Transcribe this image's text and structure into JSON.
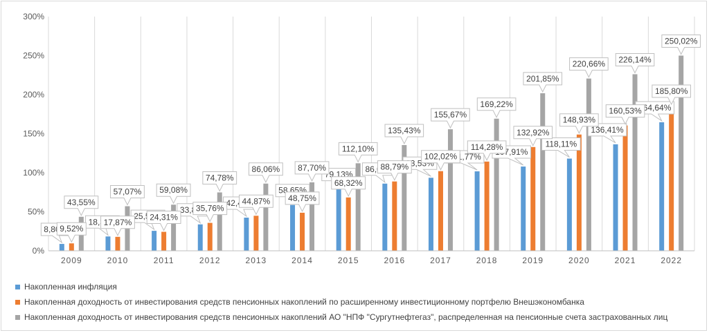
{
  "chart_data": {
    "type": "bar",
    "categories": [
      "2009",
      "2010",
      "2011",
      "2012",
      "2013",
      "2014",
      "2015",
      "2016",
      "2017",
      "2018",
      "2019",
      "2020",
      "2021",
      "2022"
    ],
    "series": [
      {
        "name": "Накопленная инфляция",
        "color": "#5b9bd5",
        "values": [
          8.8,
          18.35,
          25.57,
          33.82,
          42.48,
          58.65,
          79.13,
          86.04,
          93.53,
          101.77,
          107.91,
          118.11,
          136.41,
          164.64
        ],
        "labels": [
          "8,80%",
          "18,35%",
          "25,57%",
          "33,82%",
          "42,48%",
          "58,65%",
          "79,13%",
          "86,04%",
          "93,53%",
          "101,77%",
          "107,91%",
          "118,11%",
          "136,41%",
          "164,64%"
        ]
      },
      {
        "name": "Накопленная доходность от инвестирования средств пенсионных накоплений по расширенному инвестиционному портфелю Внешэкономбанка",
        "color": "#ed7d31",
        "values": [
          9.52,
          17.87,
          24.31,
          35.76,
          44.87,
          48.75,
          68.32,
          88.79,
          102.02,
          114.28,
          132.92,
          148.93,
          160.53,
          185.8
        ],
        "labels": [
          "9,52%",
          "17,87%",
          "24,31%",
          "35,76%",
          "44,87%",
          "48,75%",
          "68,32%",
          "88,79%",
          "102,02%",
          "114,28%",
          "132,92%",
          "148,93%",
          "160,53%",
          "185,80%"
        ]
      },
      {
        "name": "Накопленная доходность от инвестирования средств пенсионных накоплений АО \"НПФ \"Сургутнефтегаз\", распределенная на пенсионные счета застрахованных лиц",
        "color": "#a5a5a5",
        "values": [
          43.55,
          57.07,
          59.08,
          74.78,
          86.06,
          87.7,
          112.1,
          135.43,
          155.67,
          169.22,
          201.85,
          220.66,
          226.14,
          250.02
        ],
        "labels": [
          "43,55%",
          "57,07%",
          "59,08%",
          "74,78%",
          "86,06%",
          "87,70%",
          "112,10%",
          "135,43%",
          "155,67%",
          "169,22%",
          "201,85%",
          "220,66%",
          "226,14%",
          "250,02%"
        ]
      }
    ],
    "y_ticks": [
      "0%",
      "50%",
      "100%",
      "150%",
      "200%",
      "250%",
      "300%"
    ],
    "y_tick_values": [
      0,
      50,
      100,
      150,
      200,
      250,
      300
    ],
    "ylim": [
      0,
      300
    ],
    "grid": "vertical",
    "legend_position": "bottom-left",
    "title": "",
    "xlabel": "",
    "ylabel": ""
  }
}
